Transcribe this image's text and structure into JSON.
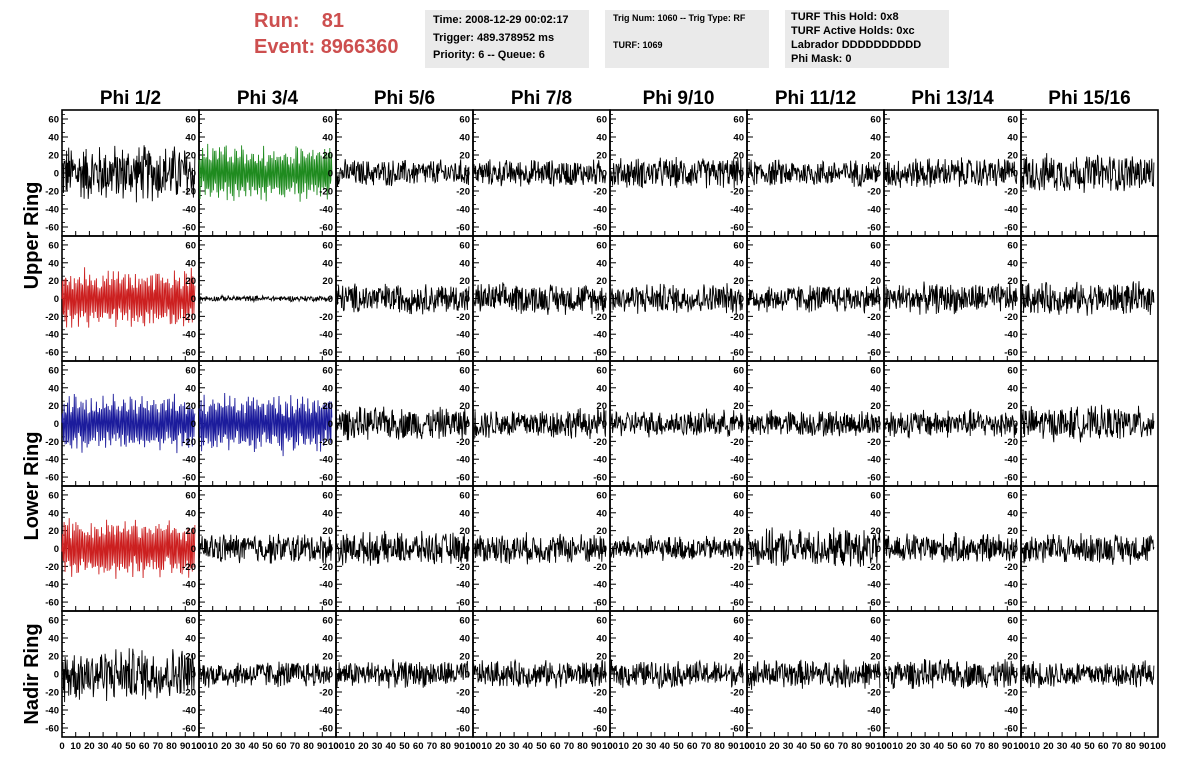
{
  "header": {
    "run_label": "Run:",
    "run_value": "81",
    "event_label": "Event:",
    "event_value": "8966360"
  },
  "info_box_1": {
    "time": "Time: 2008-12-29 00:02:17",
    "trigger": "Trigger: 489.378952 ms",
    "priority": "Priority: 6 -- Queue: 6"
  },
  "info_box_2": {
    "trig": "Trig Num: 1060 -- Trig Type: RF",
    "turf": "TURF: 1069"
  },
  "info_box_3": {
    "hold": "TURF This Hold: 0x8",
    "active": "TURF Active Holds: 0xc",
    "labrador": "Labrador DDDDDDDDDD",
    "phimask": "Phi Mask: 0"
  },
  "colors": {
    "header_red": "#cd4f4f",
    "trace_black": "#000000",
    "trace_green": "#1f8b1f",
    "trace_red": "#cc2020",
    "trace_blue": "#1c1c9c"
  },
  "chart_data": {
    "type": "line",
    "columns": [
      "Phi 1/2",
      "Phi 3/4",
      "Phi 5/6",
      "Phi 7/8",
      "Phi 9/10",
      "Phi 11/12",
      "Phi 13/14",
      "Phi 15/16"
    ],
    "rows": [
      "Upper Ring",
      "Lower Ring",
      "Nadir Ring"
    ],
    "subplot_rows": 5,
    "ylim": [
      -70,
      70
    ],
    "yticks": [
      -60,
      -40,
      -20,
      0,
      20,
      40,
      60
    ],
    "xlim": [
      0,
      100
    ],
    "xticks": [
      0,
      10,
      20,
      30,
      40,
      50,
      60,
      70,
      80,
      90,
      100
    ],
    "grid": false,
    "amplitudes": [
      [
        30,
        28,
        14,
        14,
        16,
        14,
        16,
        20
      ],
      [
        30,
        3,
        16,
        16,
        16,
        15,
        16,
        17
      ],
      [
        30,
        30,
        17,
        16,
        14,
        14,
        15,
        18
      ],
      [
        30,
        16,
        17,
        16,
        13,
        20,
        16,
        16
      ],
      [
        28,
        14,
        14,
        14,
        14,
        15,
        15,
        14
      ]
    ],
    "trace_colors": [
      [
        "black",
        "green",
        "black",
        "black",
        "black",
        "black",
        "black",
        "black"
      ],
      [
        "red",
        "black",
        "black",
        "black",
        "black",
        "black",
        "black",
        "black"
      ],
      [
        "blue",
        "blue",
        "black",
        "black",
        "black",
        "black",
        "black",
        "black"
      ],
      [
        "red",
        "black",
        "black",
        "black",
        "black",
        "black",
        "black",
        "black"
      ],
      [
        "black",
        "black",
        "black",
        "black",
        "black",
        "black",
        "black",
        "black"
      ]
    ]
  }
}
